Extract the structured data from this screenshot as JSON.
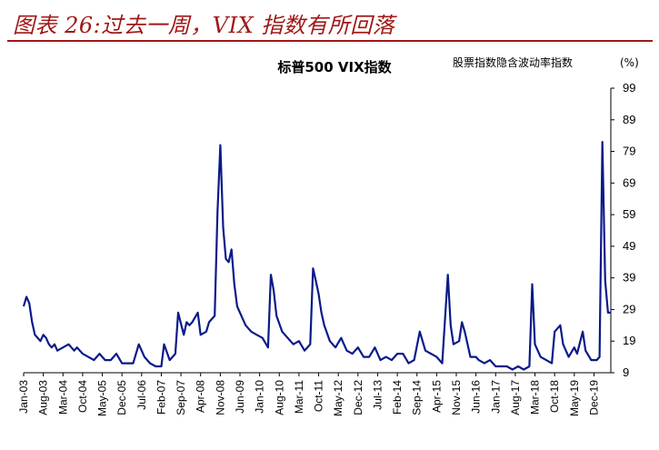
{
  "figure": {
    "caption": "图表 26:过去一周，VIX 指数有所回落"
  },
  "chart_data": {
    "type": "line",
    "title": "标普500 VIX指数",
    "ylabel": "股票指数隐含波动率指数",
    "yunit": "(%)",
    "xlabel": "",
    "ylim": [
      9,
      99
    ],
    "yticks": [
      9,
      19,
      29,
      39,
      49,
      59,
      69,
      79,
      89,
      99
    ],
    "xlim": [
      "2003-01",
      "2020-06"
    ],
    "xticks": [
      "Jan-03",
      "Aug-03",
      "Mar-04",
      "Oct-04",
      "May-05",
      "Dec-05",
      "Jul-06",
      "Feb-07",
      "Sep-07",
      "Apr-08",
      "Nov-08",
      "Jun-09",
      "Jan-10",
      "Aug-10",
      "Mar-11",
      "Oct-11",
      "May-12",
      "Dec-12",
      "Jul-13",
      "Feb-14",
      "Sep-14",
      "Apr-15",
      "Nov-15",
      "Jun-16",
      "Jan-17",
      "Aug-17",
      "Mar-18",
      "Oct-18",
      "May-19",
      "Dec-19"
    ],
    "grid": false,
    "series_color": "#0a1a8a",
    "series": [
      {
        "x": [
          "2003-01",
          "2003-02",
          "2003-03",
          "2003-04",
          "2003-05",
          "2003-06",
          "2003-07",
          "2003-08",
          "2003-09",
          "2003-10",
          "2003-11",
          "2003-12",
          "2004-01",
          "2004-03",
          "2004-05",
          "2004-07",
          "2004-08",
          "2004-10",
          "2004-12",
          "2005-02",
          "2005-04",
          "2005-06",
          "2005-08",
          "2005-10",
          "2005-12",
          "2006-02",
          "2006-04",
          "2006-06",
          "2006-08",
          "2006-10",
          "2006-12",
          "2007-02",
          "2007-03",
          "2007-05",
          "2007-07",
          "2007-08",
          "2007-10",
          "2007-11",
          "2007-12",
          "2008-01",
          "2008-03",
          "2008-04",
          "2008-06",
          "2008-07",
          "2008-09",
          "2008-10",
          "2008-11",
          "2008-12",
          "2009-01",
          "2009-02",
          "2009-03",
          "2009-04",
          "2009-05",
          "2009-06",
          "2009-08",
          "2009-10",
          "2009-12",
          "2010-02",
          "2010-04",
          "2010-05",
          "2010-06",
          "2010-07",
          "2010-09",
          "2010-11",
          "2011-01",
          "2011-03",
          "2011-05",
          "2011-07",
          "2011-08",
          "2011-09",
          "2011-10",
          "2011-11",
          "2011-12",
          "2012-02",
          "2012-04",
          "2012-06",
          "2012-08",
          "2012-10",
          "2012-12",
          "2013-02",
          "2013-04",
          "2013-06",
          "2013-08",
          "2013-10",
          "2013-12",
          "2014-02",
          "2014-04",
          "2014-06",
          "2014-08",
          "2014-10",
          "2014-12",
          "2015-02",
          "2015-04",
          "2015-06",
          "2015-08",
          "2015-09",
          "2015-10",
          "2015-12",
          "2016-01",
          "2016-02",
          "2016-04",
          "2016-06",
          "2016-07",
          "2016-09",
          "2016-11",
          "2017-01",
          "2017-03",
          "2017-05",
          "2017-07",
          "2017-09",
          "2017-11",
          "2018-01",
          "2018-02",
          "2018-03",
          "2018-05",
          "2018-07",
          "2018-09",
          "2018-10",
          "2018-12",
          "2019-01",
          "2019-03",
          "2019-05",
          "2019-06",
          "2019-08",
          "2019-09",
          "2019-11",
          "2020-01",
          "2020-02",
          "2020-03",
          "2020-04",
          "2020-05",
          "2020-06"
        ],
        "values": [
          30,
          33,
          31,
          25,
          21,
          20,
          19,
          21,
          20,
          18,
          17,
          18,
          16,
          17,
          18,
          16,
          17,
          15,
          14,
          13,
          15,
          13,
          13,
          15,
          12,
          12,
          12,
          18,
          14,
          12,
          11,
          11,
          18,
          13,
          15,
          28,
          21,
          25,
          24,
          25,
          28,
          21,
          22,
          25,
          27,
          60,
          81,
          55,
          45,
          44,
          48,
          37,
          30,
          28,
          24,
          22,
          21,
          20,
          17,
          40,
          35,
          27,
          22,
          20,
          18,
          19,
          16,
          18,
          42,
          38,
          34,
          28,
          24,
          19,
          17,
          20,
          16,
          15,
          17,
          14,
          14,
          17,
          13,
          14,
          13,
          15,
          15,
          12,
          13,
          22,
          16,
          15,
          14,
          12,
          40,
          24,
          18,
          19,
          25,
          22,
          14,
          14,
          13,
          12,
          13,
          11,
          11,
          11,
          10,
          11,
          10,
          11,
          37,
          18,
          14,
          13,
          12,
          22,
          24,
          18,
          14,
          17,
          15,
          22,
          16,
          13,
          13,
          14,
          82,
          38,
          28,
          28
        ]
      }
    ]
  }
}
